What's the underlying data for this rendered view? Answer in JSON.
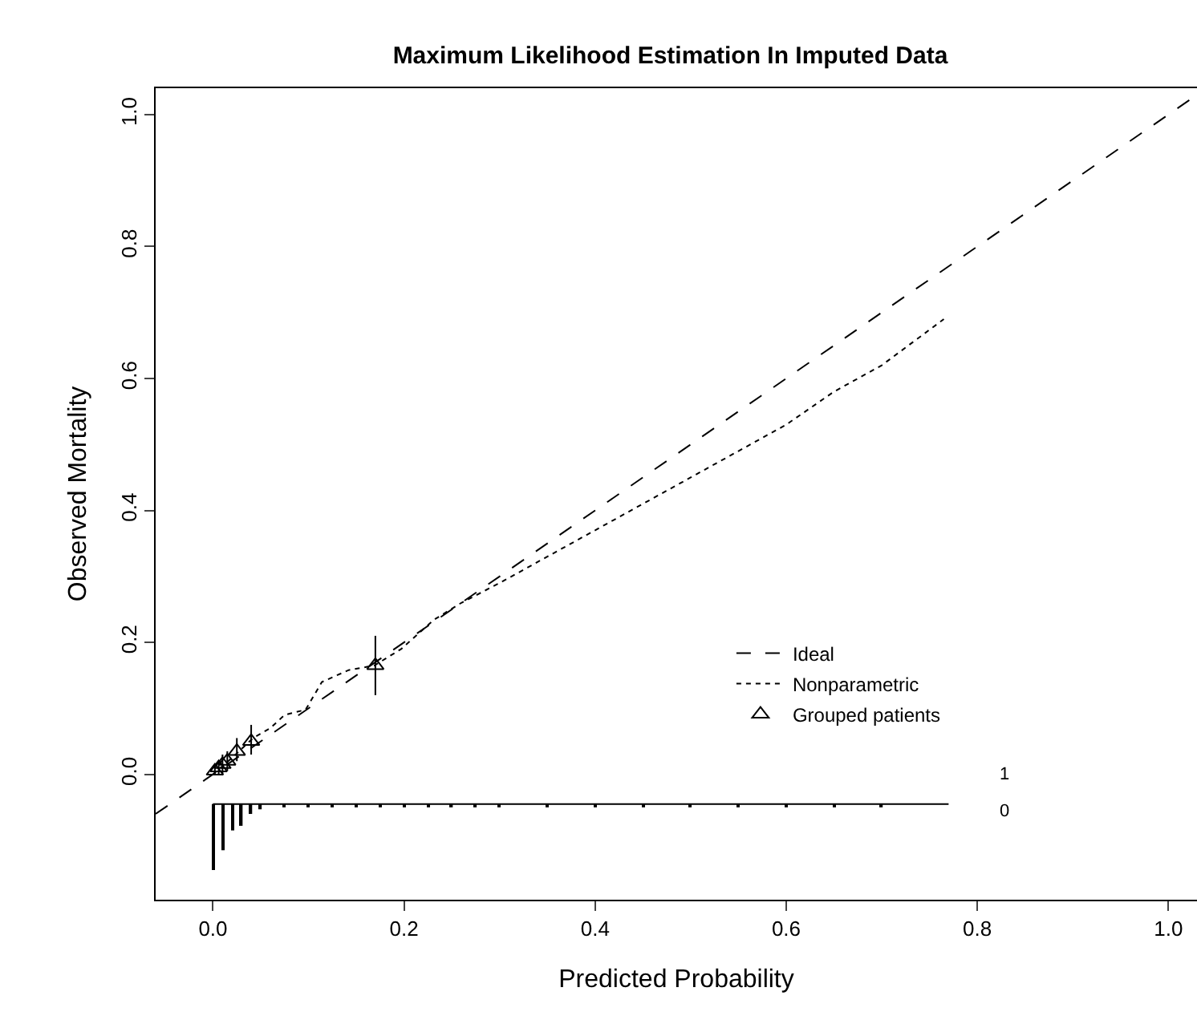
{
  "chart_data": {
    "type": "line",
    "title": "Maximum Likelihood Estimation In Imputed Data",
    "xlabel": "Predicted Probability",
    "ylabel": "Observed Mortality",
    "xlim": [
      -0.06,
      1.03
    ],
    "ylim": [
      -0.19,
      1.04
    ],
    "xticks": [
      {
        "value": 0,
        "label": "0.0"
      },
      {
        "value": 0.2,
        "label": "0.2"
      },
      {
        "value": 0.4,
        "label": "0.4"
      },
      {
        "value": 0.6,
        "label": "0.6"
      },
      {
        "value": 0.8,
        "label": "0.8"
      },
      {
        "value": 1,
        "label": "1.0"
      }
    ],
    "yticks": [
      {
        "value": 0,
        "label": "0.0"
      },
      0.2,
      0.4,
      0.6,
      0.8,
      {
        "value": 1,
        "label": "1.0"
      }
    ],
    "grid": false,
    "legend": "bottom right",
    "series": [
      {
        "name": "Ideal",
        "line_style": "dashed",
        "color": "#000000",
        "x": [
          -0.06,
          1.03
        ],
        "values": [
          -0.06,
          1.03
        ]
      },
      {
        "name": "Nonparametric",
        "line_style": "dotted",
        "color": "#000000",
        "x": [
          0,
          0.02,
          0.042,
          0.06,
          0.075,
          0.097,
          0.114,
          0.142,
          0.169,
          0.197,
          0.231,
          0.26,
          0.3,
          0.35,
          0.4,
          0.45,
          0.5,
          0.55,
          0.6,
          0.65,
          0.7,
          0.765
        ],
        "values": [
          0,
          0.025,
          0.055,
          0.07,
          0.09,
          0.098,
          0.14,
          0.158,
          0.165,
          0.19,
          0.234,
          0.26,
          0.29,
          0.33,
          0.37,
          0.41,
          0.45,
          0.49,
          0.53,
          0.58,
          0.62,
          0.69
        ]
      },
      {
        "name": "Grouped patients",
        "type": "scatter",
        "marker": "triangle",
        "color": "#000000",
        "x": [
          0.002,
          0.006,
          0.01,
          0.015,
          0.025,
          0.04,
          0.17
        ],
        "values": [
          0.005,
          0.01,
          0.015,
          0.02,
          0.035,
          0.05,
          0.165
        ],
        "errors": [
          [
            0,
            0.012
          ],
          [
            0,
            0.02
          ],
          [
            0,
            0.03
          ],
          [
            0.005,
            0.035
          ],
          [
            0.02,
            0.055
          ],
          [
            0.03,
            0.075
          ],
          [
            0.12,
            0.21
          ]
        ]
      },
      {
        "type": "line",
        "line_style": "solid",
        "color": "#000000",
        "x": [
          0,
          0.77
        ],
        "values": [
          -0.045,
          -0.045
        ]
      },
      {
        "type": "bar",
        "color": "#000000",
        "x": [
          0,
          0.01,
          0.02,
          0.03,
          0.04,
          0.05,
          0.075,
          0.1,
          0.125,
          0.15,
          0.175,
          0.2,
          0.225,
          0.25,
          0.275,
          0.3,
          0.35,
          0.4,
          0.45,
          0.5,
          0.55,
          0.6,
          0.65,
          0.7
        ],
        "base": [
          -0.045,
          -0.045,
          -0.045,
          -0.045,
          -0.045,
          -0.045,
          -0.045,
          -0.045,
          -0.045,
          -0.045,
          -0.045,
          -0.045,
          -0.045,
          -0.045,
          -0.045,
          -0.045,
          -0.045,
          -0.045,
          -0.045,
          -0.045,
          -0.045,
          -0.045,
          -0.045,
          -0.045
        ],
        "values": [
          -0.1,
          -0.07,
          -0.04,
          -0.033,
          -0.015,
          -0.008,
          -0.005,
          -0.005,
          -0.005,
          -0.005,
          -0.005,
          -0.005,
          -0.005,
          -0.005,
          -0.005,
          -0.005,
          -0.005,
          -0.005,
          -0.005,
          -0.005,
          -0.005,
          -0.005,
          -0.005,
          -0.005
        ]
      }
    ],
    "annotations": [
      "1",
      "0"
    ]
  }
}
